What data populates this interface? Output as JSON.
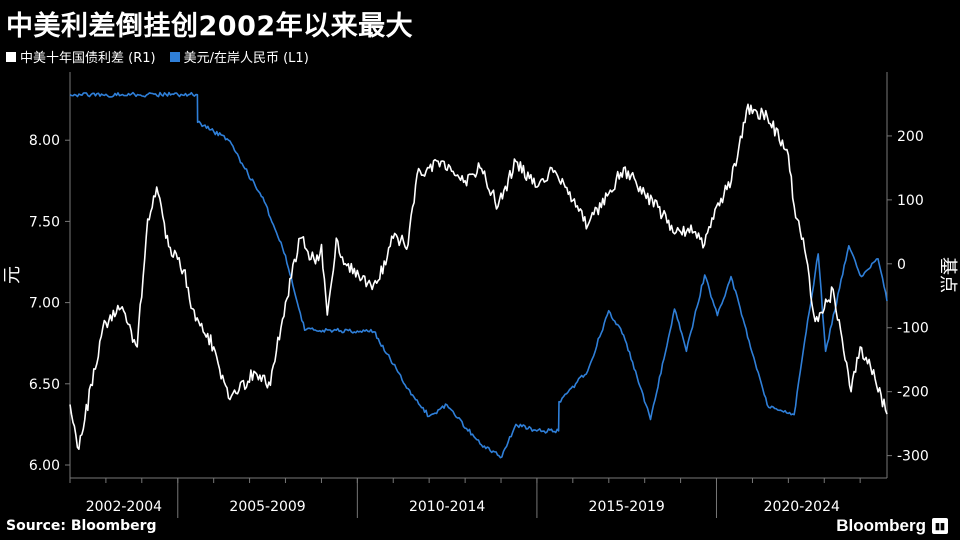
{
  "title": "中美利差倒挂创2002年以来最大",
  "legend": [
    {
      "label": "中美十年国债利差 (R1)",
      "color": "#ffffff"
    },
    {
      "label": "美元/在岸人民币 (L1)",
      "color": "#2f7fd8"
    }
  ],
  "source": "Source: Bloomberg",
  "brand": "Bloomberg",
  "chart_data": {
    "type": "line",
    "x_type": "date",
    "xlim": [
      "2002-01-01",
      "2024-09-30"
    ],
    "x_tick_labels": [
      "2002-2004",
      "2005-2009",
      "2010-2014",
      "2015-2019",
      "2020-2024"
    ],
    "left_axis": {
      "label": "元",
      "ticks": [
        "6.00",
        "6.50",
        "7.00",
        "7.50",
        "8.00"
      ],
      "ylim": [
        5.92,
        8.42
      ]
    },
    "right_axis": {
      "label": "基点",
      "ticks": [
        "-300",
        "-200",
        "-100",
        "0",
        "100",
        "200"
      ],
      "ylim": [
        -335,
        300
      ]
    },
    "series": [
      {
        "name": "美元/在岸人民币 (L1)",
        "axis": "left",
        "color": "#2f7fd8",
        "points": [
          [
            "2002-01-01",
            8.28
          ],
          [
            "2005-07-20",
            8.28
          ],
          [
            "2005-07-22",
            8.11
          ],
          [
            "2006-06-01",
            8.0
          ],
          [
            "2007-06-01",
            7.62
          ],
          [
            "2008-01-01",
            7.29
          ],
          [
            "2008-07-15",
            6.83
          ],
          [
            "2009-06-01",
            6.83
          ],
          [
            "2010-06-18",
            6.82
          ],
          [
            "2011-06-01",
            6.47
          ],
          [
            "2012-01-01",
            6.3
          ],
          [
            "2012-07-01",
            6.37
          ],
          [
            "2013-06-01",
            6.13
          ],
          [
            "2014-01-10",
            6.05
          ],
          [
            "2014-06-01",
            6.25
          ],
          [
            "2014-12-31",
            6.21
          ],
          [
            "2015-08-10",
            6.21
          ],
          [
            "2015-08-14",
            6.39
          ],
          [
            "2016-06-01",
            6.58
          ],
          [
            "2016-12-31",
            6.95
          ],
          [
            "2017-06-01",
            6.8
          ],
          [
            "2018-03-01",
            6.28
          ],
          [
            "2018-10-31",
            6.96
          ],
          [
            "2019-03-01",
            6.7
          ],
          [
            "2019-09-03",
            7.17
          ],
          [
            "2020-01-10",
            6.92
          ],
          [
            "2020-05-28",
            7.16
          ],
          [
            "2021-05-31",
            6.37
          ],
          [
            "2022-02-28",
            6.31
          ],
          [
            "2022-06-01",
            6.7
          ],
          [
            "2022-10-31",
            7.3
          ],
          [
            "2023-01-15",
            6.7
          ],
          [
            "2023-09-08",
            7.35
          ],
          [
            "2024-01-15",
            7.16
          ],
          [
            "2024-06-30",
            7.27
          ],
          [
            "2024-09-30",
            7.01
          ]
        ]
      },
      {
        "name": "中美十年国债利差 (R1)",
        "axis": "right",
        "color": "#ffffff",
        "points": [
          [
            "2002-01-01",
            -220
          ],
          [
            "2002-04-01",
            -290
          ],
          [
            "2002-12-01",
            -100
          ],
          [
            "2003-06-01",
            -70
          ],
          [
            "2003-11-15",
            -130
          ],
          [
            "2004-03-01",
            70
          ],
          [
            "2004-06-01",
            120
          ],
          [
            "2004-09-01",
            40
          ],
          [
            "2005-03-01",
            -10
          ],
          [
            "2005-06-01",
            -70
          ],
          [
            "2006-01-01",
            -130
          ],
          [
            "2006-06-01",
            -210
          ],
          [
            "2007-03-01",
            -170
          ],
          [
            "2007-08-01",
            -190
          ],
          [
            "2008-01-01",
            -60
          ],
          [
            "2008-06-01",
            40
          ],
          [
            "2008-11-01",
            0
          ],
          [
            "2009-01-01",
            30
          ],
          [
            "2009-03-01",
            -80
          ],
          [
            "2009-06-01",
            40
          ],
          [
            "2009-09-01",
            0
          ],
          [
            "2010-06-01",
            -40
          ],
          [
            "2010-11-01",
            10
          ],
          [
            "2011-01-01",
            40
          ],
          [
            "2011-06-01",
            30
          ],
          [
            "2011-09-01",
            140
          ],
          [
            "2012-01-01",
            150
          ],
          [
            "2012-06-01",
            160
          ],
          [
            "2013-01-01",
            130
          ],
          [
            "2013-06-01",
            150
          ],
          [
            "2013-12-01",
            90
          ],
          [
            "2014-06-01",
            160
          ],
          [
            "2015-01-01",
            120
          ],
          [
            "2015-06-01",
            150
          ],
          [
            "2016-06-01",
            60
          ],
          [
            "2017-01-01",
            110
          ],
          [
            "2017-06-01",
            150
          ],
          [
            "2018-01-01",
            110
          ],
          [
            "2018-10-01",
            60
          ],
          [
            "2019-01-01",
            50
          ],
          [
            "2019-06-01",
            50
          ],
          [
            "2019-09-01",
            30
          ],
          [
            "2020-01-01",
            90
          ],
          [
            "2020-06-01",
            130
          ],
          [
            "2020-11-01",
            240
          ],
          [
            "2021-06-01",
            230
          ],
          [
            "2022-01-01",
            170
          ],
          [
            "2022-03-01",
            90
          ],
          [
            "2022-06-01",
            40
          ],
          [
            "2022-10-01",
            -90
          ],
          [
            "2023-01-01",
            -70
          ],
          [
            "2023-04-01",
            -40
          ],
          [
            "2023-10-01",
            -200
          ],
          [
            "2024-01-01",
            -130
          ],
          [
            "2024-06-01",
            -180
          ],
          [
            "2024-09-30",
            -235
          ]
        ]
      }
    ]
  }
}
